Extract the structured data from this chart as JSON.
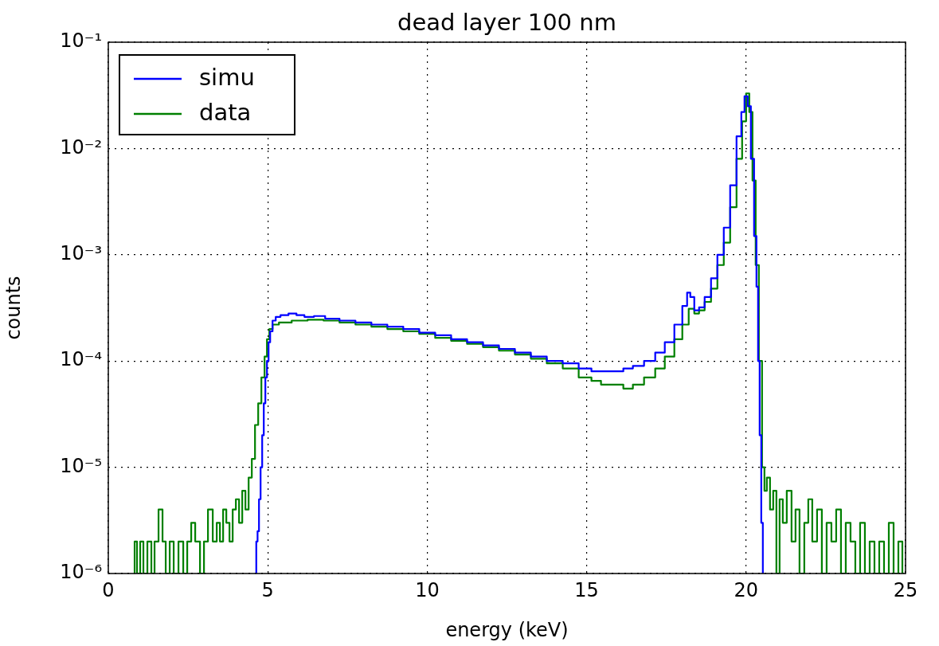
{
  "chart_data": {
    "type": "step",
    "title": "dead layer 100 nm",
    "xlabel": "energy (keV)",
    "ylabel": "counts",
    "log": "y",
    "grid": true,
    "legend": "top left",
    "line_style": "solid",
    "marker": "none",
    "xlim": [
      0,
      25
    ],
    "xticks": [
      0,
      5,
      10,
      15,
      20,
      25
    ],
    "ylim": [
      1e-06,
      0.1
    ],
    "yticks": [
      {
        "value": 1e-06,
        "label": "10⁻⁶"
      },
      {
        "value": 1e-05,
        "label": "10⁻⁵"
      },
      {
        "value": 0.0001,
        "label": "10⁻⁴"
      },
      {
        "value": 0.001,
        "label": "10⁻³"
      },
      {
        "value": 0.01,
        "label": "10⁻²"
      },
      {
        "value": 0.1,
        "label": "10⁻¹"
      }
    ],
    "series": [
      {
        "name": "simu",
        "color": "#0000ff",
        "x": [
          4.62,
          4.66,
          4.7,
          4.75,
          4.8,
          4.85,
          4.9,
          4.95,
          5.0,
          5.05,
          5.1,
          5.2,
          5.3,
          5.5,
          5.8,
          6.0,
          6.3,
          6.6,
          7.0,
          7.5,
          8.0,
          8.5,
          9.0,
          9.5,
          10.0,
          10.5,
          11.0,
          11.5,
          12.0,
          12.5,
          13.0,
          13.5,
          14.0,
          14.5,
          15.0,
          15.3,
          15.6,
          16.0,
          16.3,
          16.6,
          17.0,
          17.3,
          17.6,
          17.9,
          18.1,
          18.2,
          18.3,
          18.45,
          18.6,
          18.8,
          19.0,
          19.2,
          19.4,
          19.6,
          19.8,
          19.9,
          20.0,
          20.1,
          20.2,
          20.3,
          20.35,
          20.4,
          20.45,
          20.5,
          20.55
        ],
        "values": [
          1e-06,
          2e-06,
          2.5e-06,
          5e-06,
          1e-05,
          2e-05,
          4e-05,
          7e-05,
          0.0001,
          0.00015,
          0.00019,
          0.00024,
          0.00026,
          0.00027,
          0.00028,
          0.00027,
          0.00026,
          0.000265,
          0.00025,
          0.00024,
          0.00023,
          0.00022,
          0.00021,
          0.0002,
          0.000185,
          0.000175,
          0.00016,
          0.00015,
          0.00014,
          0.00013,
          0.00012,
          0.00011,
          0.0001,
          9.5e-05,
          8.5e-05,
          8e-05,
          8e-05,
          8e-05,
          8.5e-05,
          9e-05,
          0.0001,
          0.00012,
          0.00015,
          0.00022,
          0.00033,
          0.00044,
          0.0004,
          0.0003,
          0.00032,
          0.0004,
          0.0006,
          0.001,
          0.0018,
          0.0045,
          0.013,
          0.022,
          0.031,
          0.025,
          0.008,
          0.0015,
          0.0005,
          0.0001,
          2e-05,
          3e-06,
          1e-06
        ]
      },
      {
        "name": "data",
        "color": "#008000",
        "x": [
          0.8,
          0.85,
          0.95,
          1.05,
          1.15,
          1.3,
          1.4,
          1.5,
          1.65,
          1.75,
          1.85,
          2.0,
          2.1,
          2.3,
          2.4,
          2.55,
          2.65,
          2.8,
          2.95,
          3.05,
          3.2,
          3.35,
          3.45,
          3.55,
          3.65,
          3.75,
          3.85,
          3.95,
          4.05,
          4.15,
          4.25,
          4.35,
          4.45,
          4.55,
          4.65,
          4.75,
          4.85,
          4.95,
          5.0,
          5.1,
          5.2,
          5.5,
          6.0,
          6.5,
          7.0,
          7.5,
          8.0,
          8.5,
          9.0,
          9.5,
          10.0,
          10.5,
          11.0,
          11.5,
          12.0,
          12.5,
          13.0,
          13.5,
          14.0,
          14.5,
          15.0,
          15.3,
          15.6,
          16.0,
          16.3,
          16.6,
          17.0,
          17.3,
          17.6,
          17.9,
          18.1,
          18.3,
          18.45,
          18.6,
          18.8,
          19.0,
          19.2,
          19.4,
          19.6,
          19.8,
          19.95,
          20.05,
          20.15,
          20.25,
          20.35,
          20.45,
          20.55,
          20.6,
          20.7,
          20.8,
          20.9,
          21.0,
          21.1,
          21.2,
          21.35,
          21.5,
          21.6,
          21.75,
          21.9,
          22.0,
          22.15,
          22.3,
          22.45,
          22.6,
          22.75,
          22.9,
          23.05,
          23.2,
          23.35,
          23.5,
          23.65,
          23.8,
          23.95,
          24.1,
          24.25,
          24.4,
          24.55,
          24.7,
          24.85,
          24.95
        ],
        "values": [
          1e-06,
          2e-06,
          1e-06,
          2e-06,
          1e-06,
          2e-06,
          1e-06,
          2e-06,
          4e-06,
          2e-06,
          1e-06,
          2e-06,
          1e-06,
          2e-06,
          1e-06,
          2e-06,
          3e-06,
          2e-06,
          1e-06,
          2e-06,
          4e-06,
          2e-06,
          3e-06,
          2e-06,
          4e-06,
          3e-06,
          2e-06,
          4e-06,
          5e-06,
          3e-06,
          6e-06,
          4e-06,
          8e-06,
          1.2e-05,
          2.5e-05,
          4e-05,
          7e-05,
          0.00011,
          0.00016,
          0.0002,
          0.00022,
          0.00023,
          0.00024,
          0.000245,
          0.00024,
          0.00023,
          0.00022,
          0.00021,
          0.0002,
          0.00019,
          0.00018,
          0.000165,
          0.000155,
          0.000145,
          0.000135,
          0.000125,
          0.000115,
          0.000105,
          9.5e-05,
          8.5e-05,
          7e-05,
          6.5e-05,
          6e-05,
          6e-05,
          5.5e-05,
          6e-05,
          7e-05,
          8.5e-05,
          0.00011,
          0.00016,
          0.00022,
          0.00031,
          0.00028,
          0.0003,
          0.00036,
          0.00048,
          0.0008,
          0.0013,
          0.0028,
          0.008,
          0.018,
          0.033,
          0.022,
          0.005,
          0.0008,
          0.0001,
          1e-05,
          6e-06,
          8e-06,
          4e-06,
          6e-06,
          1e-06,
          5e-06,
          3e-06,
          6e-06,
          2e-06,
          4e-06,
          1e-06,
          3e-06,
          5e-06,
          2e-06,
          4e-06,
          1e-06,
          3e-06,
          2e-06,
          4e-06,
          1e-06,
          3e-06,
          2e-06,
          1e-06,
          3e-06,
          1e-06,
          2e-06,
          1e-06,
          2e-06,
          1e-06,
          3e-06,
          1e-06,
          2e-06,
          1e-06
        ]
      }
    ]
  }
}
